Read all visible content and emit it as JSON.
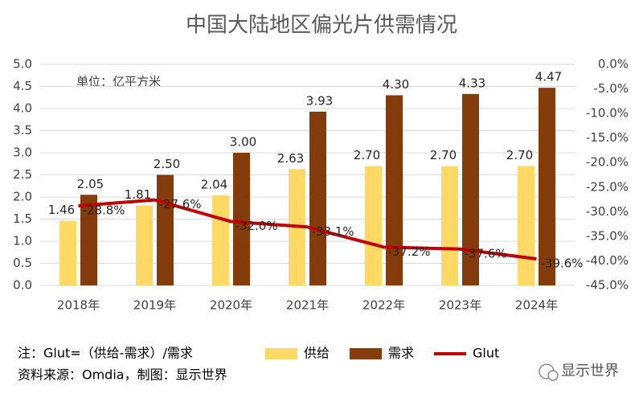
{
  "chart_data": {
    "type": "bar",
    "title": "中国大陆地区偏光片供需情况",
    "annotation": "单位：亿平方米",
    "note": "注：Glut=（供给-需求）/需求",
    "source": "资料来源：Omdia，制图：显示世界",
    "watermark": "显示世界",
    "categories": [
      "2018年",
      "2019年",
      "2020年",
      "2021年",
      "2022年",
      "2023年",
      "2024年"
    ],
    "series": [
      {
        "name": "供给",
        "color": "#ffd966",
        "values": [
          1.46,
          1.81,
          2.04,
          2.63,
          2.7,
          2.7,
          2.7
        ],
        "value_labels": [
          "1.46",
          "1.81",
          "2.04",
          "2.63",
          "2.70",
          "2.70",
          "2.70"
        ]
      },
      {
        "name": "需求",
        "color": "#843c0c",
        "values": [
          2.05,
          2.5,
          3.0,
          3.93,
          4.3,
          4.33,
          4.47
        ],
        "value_labels": [
          "2.05",
          "2.50",
          "3.00",
          "3.93",
          "4.30",
          "4.33",
          "4.47"
        ]
      },
      {
        "name": "Glut",
        "type": "line",
        "axis": "y2",
        "color": "#c00000",
        "values": [
          -28.8,
          -27.6,
          -32.0,
          -33.1,
          -37.2,
          -37.6,
          -39.6
        ],
        "value_labels": [
          "-28.8%",
          "-27.6%",
          "-32.0%",
          "-33.1%",
          "-37.2%",
          "-37.6%",
          "-39.6%"
        ]
      }
    ],
    "ylim": [
      0,
      5
    ],
    "yticks": [
      {
        "value": 0,
        "label": "0.0"
      },
      0.5,
      {
        "value": 1,
        "label": "1.0"
      },
      1.5,
      {
        "value": 2,
        "label": "2.0"
      },
      2.5,
      {
        "value": 3,
        "label": "3.0"
      },
      3.5,
      {
        "value": 4,
        "label": "4.0"
      },
      4.5,
      {
        "value": 5,
        "label": "5.0"
      }
    ],
    "y2lim": [
      -45,
      0
    ],
    "y2ticks": [
      {
        "value": 0,
        "label": "0.0%"
      },
      {
        "value": -5,
        "label": "-5.0%"
      },
      {
        "value": -10,
        "label": "-10.0%"
      },
      {
        "value": -15,
        "label": "-15.0%"
      },
      {
        "value": -20,
        "label": "-20.0%"
      },
      {
        "value": -25,
        "label": "-25.0%"
      },
      {
        "value": -30,
        "label": "-30.0%"
      },
      {
        "value": -35,
        "label": "-35.0%"
      },
      {
        "value": -40,
        "label": "-40.0%"
      },
      {
        "value": -45,
        "label": "-45.0%"
      }
    ],
    "grid": true
  }
}
